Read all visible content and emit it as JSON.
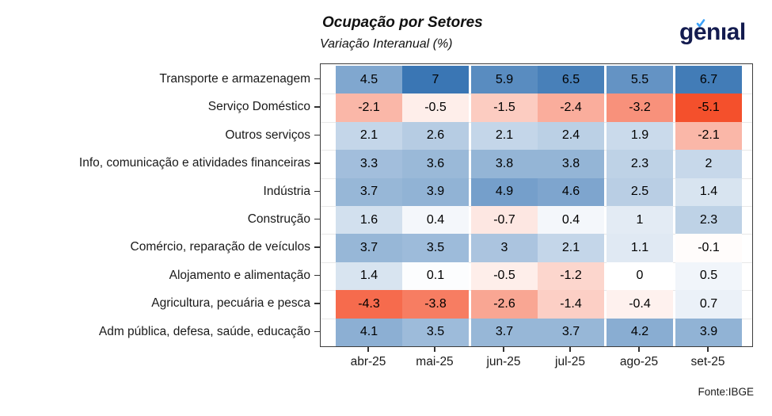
{
  "header": {
    "title": "Ocupação por Setores",
    "subtitle": "Variação Interanual (%)",
    "logo_text": "genıal",
    "logo_color": "#131b4f",
    "logo_accent_color": "#3da1f8"
  },
  "icons": {
    "logo_accent": "check-mark-icon"
  },
  "footer": {
    "source": "Fonte:IBGE"
  },
  "chart_data": {
    "type": "heatmap",
    "title": "Ocupação por Setores",
    "subtitle": "Variação Interanual (%)",
    "unit": "%",
    "x_categories": [
      "abr-25",
      "mai-25",
      "jun-25",
      "jul-25",
      "ago-25",
      "set-25"
    ],
    "rows": [
      {
        "label": "Transporte e armazenagem",
        "values": [
          4.5,
          7,
          5.9,
          6.5,
          5.5,
          6.7
        ]
      },
      {
        "label": "Serviço Doméstico",
        "values": [
          -2.1,
          -0.5,
          -1.5,
          -2.4,
          -3.2,
          -5.1
        ]
      },
      {
        "label": "Outros serviços",
        "values": [
          2.1,
          2.6,
          2.1,
          2.4,
          1.9,
          -2.1
        ]
      },
      {
        "label": "Info, comunicação e atividades financeiras",
        "values": [
          3.3,
          3.6,
          3.8,
          3.8,
          2.3,
          2
        ]
      },
      {
        "label": "Indústria",
        "values": [
          3.7,
          3.9,
          4.9,
          4.6,
          2.5,
          1.4
        ]
      },
      {
        "label": "Construção",
        "values": [
          1.6,
          0.4,
          -0.7,
          0.4,
          1,
          2.3
        ]
      },
      {
        "label": "Comércio, reparação de veículos",
        "values": [
          3.7,
          3.5,
          3,
          2.1,
          1.1,
          -0.1
        ]
      },
      {
        "label": "Alojamento e alimentação",
        "values": [
          1.4,
          0.1,
          -0.5,
          -1.2,
          0,
          0.5
        ]
      },
      {
        "label": "Agricultura, pecuária e pesca",
        "values": [
          -4.3,
          -3.8,
          -2.6,
          -1.4,
          -0.4,
          0.7
        ]
      },
      {
        "label": "Adm pública, defesa, saúde, educação",
        "values": [
          4.1,
          3.5,
          3.7,
          3.7,
          4.2,
          3.9
        ]
      }
    ],
    "color_scale": {
      "negative_color": "#f4502c",
      "zero_color": "#ffffff",
      "positive_color": "#3a76b4",
      "domain": [
        -5.1,
        0,
        7
      ]
    },
    "grid": true,
    "legend": "none",
    "source": "Fonte:IBGE"
  }
}
